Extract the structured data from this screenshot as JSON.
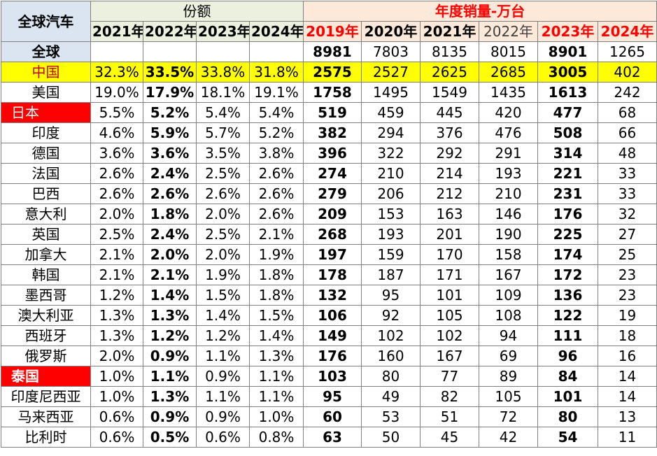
{
  "header": {
    "corner_label": "全球汽车",
    "share_label": "份额",
    "sales_label": "年度销量-万台",
    "share_years": [
      "2021年",
      "2022年",
      "2023年",
      "2024年"
    ],
    "sales_years": [
      "2019年",
      "2020年",
      "2021年",
      "2022年",
      "2023年",
      "2024年"
    ]
  },
  "global": {
    "label": "全球",
    "sales": [
      "8981",
      "7803",
      "8135",
      "8015",
      "8901",
      "1265"
    ]
  },
  "rows": [
    {
      "country": "中国",
      "share": [
        "32.3%",
        "33.5%",
        "33.8%",
        "31.8%"
      ],
      "sales": [
        "2575",
        "2527",
        "2625",
        "2685",
        "3005",
        "402"
      ]
    },
    {
      "country": "美国",
      "share": [
        "19.0%",
        "17.9%",
        "18.1%",
        "19.1%"
      ],
      "sales": [
        "1758",
        "1495",
        "1549",
        "1435",
        "1613",
        "242"
      ]
    },
    {
      "country": "日本",
      "share": [
        "5.5%",
        "5.2%",
        "5.4%",
        "5.4%"
      ],
      "sales": [
        "519",
        "459",
        "445",
        "420",
        "477",
        "68"
      ]
    },
    {
      "country": "印度",
      "share": [
        "4.6%",
        "5.9%",
        "5.7%",
        "5.2%"
      ],
      "sales": [
        "382",
        "294",
        "376",
        "476",
        "508",
        "66"
      ]
    },
    {
      "country": "德国",
      "share": [
        "3.6%",
        "3.6%",
        "3.5%",
        "3.8%"
      ],
      "sales": [
        "396",
        "322",
        "292",
        "291",
        "314",
        "48"
      ]
    },
    {
      "country": "法国",
      "share": [
        "2.6%",
        "2.4%",
        "2.5%",
        "2.6%"
      ],
      "sales": [
        "274",
        "210",
        "214",
        "193",
        "221",
        "33"
      ]
    },
    {
      "country": "巴西",
      "share": [
        "2.6%",
        "2.6%",
        "2.6%",
        "2.6%"
      ],
      "sales": [
        "279",
        "206",
        "212",
        "210",
        "231",
        "33"
      ]
    },
    {
      "country": "意大利",
      "share": [
        "2.0%",
        "1.8%",
        "2.0%",
        "2.6%"
      ],
      "sales": [
        "209",
        "153",
        "163",
        "146",
        "176",
        "32"
      ]
    },
    {
      "country": "英国",
      "share": [
        "2.5%",
        "2.4%",
        "2.5%",
        "2.1%"
      ],
      "sales": [
        "268",
        "193",
        "201",
        "190",
        "225",
        "27"
      ]
    },
    {
      "country": "加拿大",
      "share": [
        "2.1%",
        "2.0%",
        "2.0%",
        "1.9%"
      ],
      "sales": [
        "197",
        "159",
        "170",
        "158",
        "174",
        "25"
      ]
    },
    {
      "country": "韩国",
      "share": [
        "2.1%",
        "2.1%",
        "1.9%",
        "1.8%"
      ],
      "sales": [
        "178",
        "187",
        "171",
        "167",
        "172",
        "23"
      ]
    },
    {
      "country": "墨西哥",
      "share": [
        "1.2%",
        "1.4%",
        "1.5%",
        "1.8%"
      ],
      "sales": [
        "132",
        "95",
        "101",
        "109",
        "136",
        "23"
      ]
    },
    {
      "country": "澳大利亚",
      "share": [
        "1.3%",
        "1.3%",
        "1.4%",
        "1.5%"
      ],
      "sales": [
        "106",
        "92",
        "105",
        "108",
        "122",
        "19"
      ]
    },
    {
      "country": "西班牙",
      "share": [
        "1.3%",
        "1.2%",
        "1.2%",
        "1.4%"
      ],
      "sales": [
        "149",
        "102",
        "102",
        "94",
        "111",
        "18"
      ]
    },
    {
      "country": "俄罗斯",
      "share": [
        "2.0%",
        "0.9%",
        "1.1%",
        "1.3%"
      ],
      "sales": [
        "176",
        "160",
        "167",
        "69",
        "96",
        "16"
      ]
    },
    {
      "country": "泰国",
      "share": [
        "1.0%",
        "1.1%",
        "0.9%",
        "1.1%"
      ],
      "sales": [
        "103",
        "80",
        "77",
        "89",
        "84",
        "14"
      ]
    },
    {
      "country": "印度尼西亚",
      "share": [
        "1.0%",
        "1.3%",
        "1.1%",
        "1.1%"
      ],
      "sales": [
        "95",
        "49",
        "82",
        "105",
        "101",
        "14"
      ]
    },
    {
      "country": "马来西亚",
      "share": [
        "0.6%",
        "0.9%",
        "0.9%",
        "1.0%"
      ],
      "sales": [
        "60",
        "53",
        "51",
        "72",
        "80",
        "13"
      ]
    },
    {
      "country": "比利时",
      "share": [
        "0.6%",
        "0.5%",
        "0.6%",
        "0.8%"
      ],
      "sales": [
        "63",
        "50",
        "45",
        "42",
        "54",
        "11"
      ]
    }
  ],
  "highlight": {
    "china_row_color": "#ffff00",
    "japan_cell_color": "#ff0000",
    "thailand_cell_color": "#ff0000",
    "emphasis_text_color": "#ff0000"
  }
}
